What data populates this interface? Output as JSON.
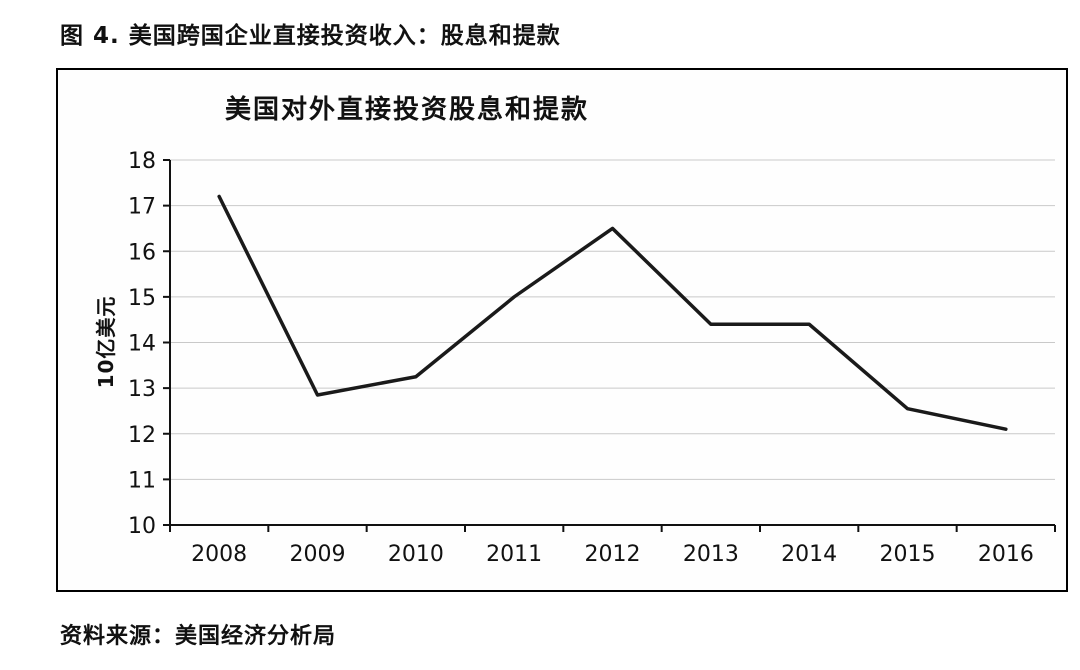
{
  "figure": {
    "caption": "图 4. 美国跨国企业直接投资收入：股息和提款",
    "source": "资料来源：美国经济分析局"
  },
  "chart_data": {
    "type": "line",
    "title": "美国对外直接投资股息和提款",
    "xlabel": "",
    "ylabel": "10亿美元",
    "categories": [
      "2008",
      "2009",
      "2010",
      "2011",
      "2012",
      "2013",
      "2014",
      "2015",
      "2016"
    ],
    "values": [
      17.2,
      12.85,
      13.25,
      15.0,
      16.5,
      14.4,
      14.4,
      12.55,
      12.1
    ],
    "ylim": [
      10,
      18
    ],
    "ytick_step": 1,
    "grid": true,
    "legend": "none",
    "line_color": "#1a1a1a",
    "grid_color": "#c9c9c9"
  }
}
